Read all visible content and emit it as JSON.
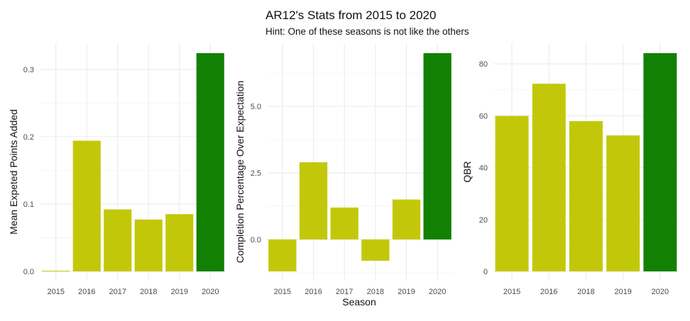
{
  "title": "AR12's Stats from 2015 to 2020",
  "subtitle": "Hint: One of these seasons is not like the others",
  "colors": {
    "normal": "#c2c809",
    "highlight": "#128002",
    "grid": "#ebebeb"
  },
  "chart_data": [
    {
      "type": "bar",
      "categories": [
        "2015",
        "2016",
        "2017",
        "2018",
        "2019",
        "2020"
      ],
      "values": [
        0.001,
        0.194,
        0.092,
        0.077,
        0.085,
        0.324
      ],
      "highlight": "2020",
      "xlabel": "",
      "ylabel": "Mean Expeted Points Added",
      "ylim": [
        0,
        0.324
      ],
      "yticks": [
        0.0,
        0.1,
        0.2,
        0.3
      ],
      "ytick_labels": [
        "0.0",
        "0.1",
        "0.2",
        "0.3"
      ],
      "grid": true
    },
    {
      "type": "bar",
      "categories": [
        "2015",
        "2016",
        "2017",
        "2018",
        "2019",
        "2020"
      ],
      "values": [
        -1.2,
        2.9,
        1.2,
        -0.8,
        1.5,
        7.0
      ],
      "highlight": "2020",
      "xlabel": "Season",
      "ylabel": "Completion Percentage Over Expectation",
      "ylim": [
        -1.2,
        7.0
      ],
      "yticks": [
        0.0,
        2.5,
        5.0
      ],
      "ytick_labels": [
        "0.0",
        "2.5",
        "5.0"
      ],
      "grid": true
    },
    {
      "type": "bar",
      "categories": [
        "2015",
        "2016",
        "2018",
        "2019",
        "2020"
      ],
      "values": [
        59.9,
        72.3,
        57.9,
        52.4,
        84.1
      ],
      "highlight": "2020",
      "xlabel": "",
      "ylabel": "QBR",
      "ylim": [
        0,
        84.1
      ],
      "yticks": [
        0,
        20,
        40,
        60,
        80
      ],
      "ytick_labels": [
        "0",
        "20",
        "40",
        "60",
        "80"
      ],
      "grid": true
    }
  ]
}
